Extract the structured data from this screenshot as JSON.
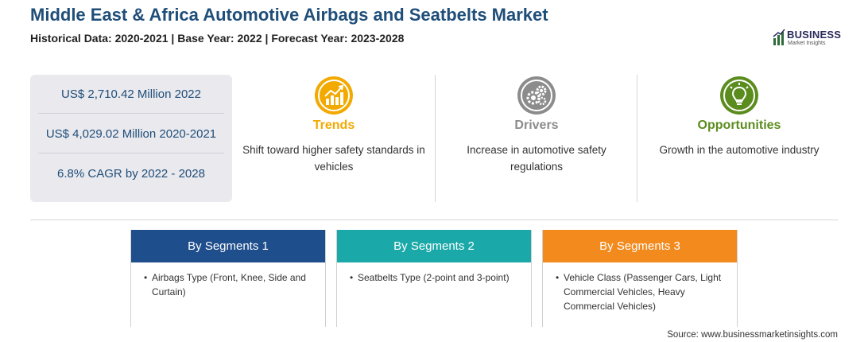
{
  "header": {
    "title": "Middle East & Africa Automotive Airbags and Seatbelts Market",
    "subtitle": "Historical Data: 2020-2021 | Base Year: 2022 | Forecast Year: 2023-2028"
  },
  "logo": {
    "main": "BUSINESS",
    "sub": "Market Insights"
  },
  "stats": [
    "US$ 2,710.42 Million 2022",
    "US$ 4,029.02 Million 2020-2021",
    "6.8% CAGR by 2022 - 2028"
  ],
  "columns": [
    {
      "title": "Trends",
      "text": "Shift toward higher safety standards in vehicles",
      "icon": "trend-chart-icon",
      "color": "#f2a900"
    },
    {
      "title": "Drivers",
      "text": "Increase in automotive safety regulations",
      "icon": "gears-icon",
      "color": "#8c8c8c"
    },
    {
      "title": "Opportunities",
      "text": "Growth in the automotive industry",
      "icon": "lightbulb-icon",
      "color": "#5b8c1e"
    }
  ],
  "segments": [
    {
      "title": "By Segments 1",
      "item": "Airbags Type (Front, Knee, Side and Curtain)",
      "color": "#1f4e8c"
    },
    {
      "title": "By Segments 2",
      "item": "Seatbelts Type (2-point and 3-point)",
      "color": "#1aa8a8"
    },
    {
      "title": "By Segments 3",
      "item": "Vehicle Class (Passenger Cars, Light Commercial Vehicles, Heavy Commercial Vehicles)",
      "color": "#f28a1e"
    }
  ],
  "bullet": "•",
  "source": "Source: www.businessmarketinsights.com"
}
